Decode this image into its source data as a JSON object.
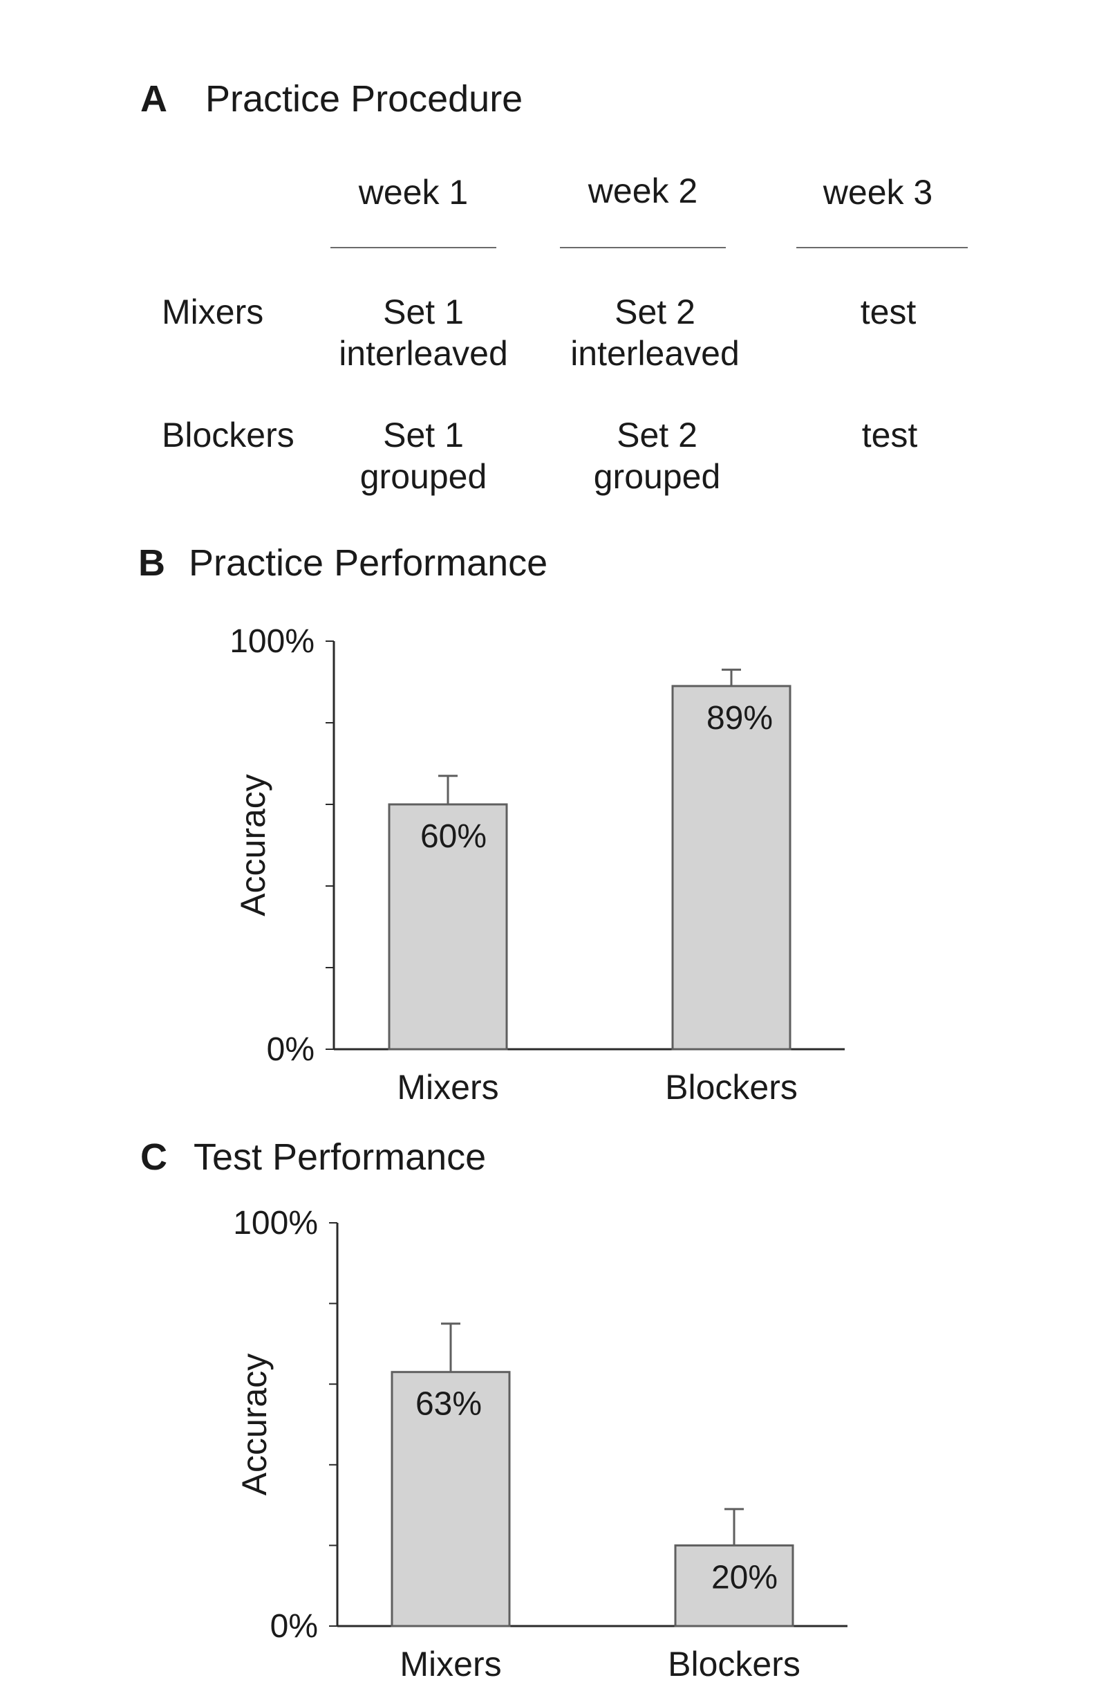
{
  "panel_a": {
    "letter": "A",
    "title": "Practice Procedure",
    "weeks": [
      "week 1",
      "week 2",
      "week 3"
    ],
    "rows": [
      {
        "label": "Mixers",
        "cells": [
          [
            "Set 1",
            "interleaved"
          ],
          [
            "Set 2",
            "interleaved"
          ],
          [
            "test"
          ]
        ]
      },
      {
        "label": "Blockers",
        "cells": [
          [
            "Set 1",
            "grouped"
          ],
          [
            "Set 2",
            "grouped"
          ],
          [
            "test"
          ]
        ]
      }
    ]
  },
  "panel_b": {
    "letter": "B",
    "title": "Practice Performance"
  },
  "panel_c": {
    "letter": "C",
    "title": "Test Performance"
  },
  "chart_data": [
    {
      "type": "bar",
      "title": "Practice Performance",
      "categories": [
        "Mixers",
        "Blockers"
      ],
      "values": [
        60,
        89
      ],
      "error": [
        7,
        4
      ],
      "data_labels": [
        "60%",
        "89%"
      ],
      "ylabel": "Accuracy",
      "ytick_labels": [
        "100%",
        "0%"
      ],
      "ylim": [
        0,
        100
      ],
      "ytick_step": 20
    },
    {
      "type": "bar",
      "title": "Test Performance",
      "categories": [
        "Mixers",
        "Blockers"
      ],
      "values": [
        63,
        20
      ],
      "error": [
        12,
        9
      ],
      "data_labels": [
        "63%",
        "20%"
      ],
      "ylabel": "Accuracy",
      "ytick_labels": [
        "100%",
        "0%"
      ],
      "ylim": [
        0,
        100
      ],
      "ytick_step": 20
    }
  ],
  "colors": {
    "bar_fill": "#d3d3d3",
    "bar_stroke": "#5f5f5f",
    "axis": "#2a2a2a"
  }
}
